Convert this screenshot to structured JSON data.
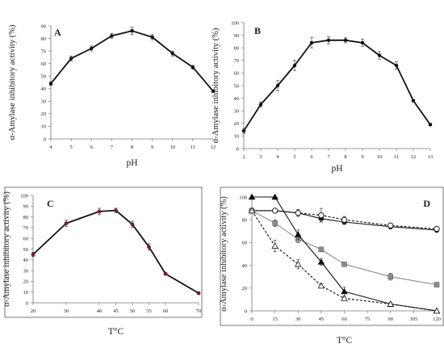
{
  "chart_data": [
    {
      "id": "A",
      "type": "line",
      "panel_label": "A",
      "xlabel": "pH",
      "ylabel": "α-Amylase inhibitory activity (%)",
      "xlim": [
        4,
        12
      ],
      "ylim": [
        0,
        90
      ],
      "xticks": [
        4,
        5,
        6,
        7,
        8,
        9,
        10,
        11,
        12
      ],
      "yticks": [
        0,
        10,
        20,
        30,
        40,
        50,
        60,
        70,
        80,
        90
      ],
      "frame": false,
      "series": [
        {
          "marker": "circle-filled",
          "style": "solid",
          "x": [
            4,
            5,
            6,
            7,
            8,
            9,
            10,
            11,
            12
          ],
          "y": [
            44,
            64,
            72,
            82,
            86,
            81,
            68,
            57,
            38
          ],
          "err": [
            1.5,
            2,
            2,
            2,
            3,
            2,
            2,
            1.5,
            1
          ]
        }
      ]
    },
    {
      "id": "B",
      "type": "line",
      "panel_label": "B",
      "xlabel": "pH",
      "ylabel": "α-Amylase inhibitory activity (%)",
      "xlim": [
        2,
        13
      ],
      "ylim": [
        0,
        100
      ],
      "xticks": [
        2,
        3,
        4,
        5,
        6,
        7,
        8,
        9,
        10,
        11,
        12,
        13
      ],
      "yticks": [
        0,
        10,
        20,
        30,
        40,
        50,
        60,
        70,
        80,
        90,
        100
      ],
      "frame": false,
      "series": [
        {
          "marker": "circle-filled",
          "style": "solid",
          "x": [
            2,
            3,
            4,
            5,
            6,
            7,
            8,
            9,
            10,
            11,
            12,
            13
          ],
          "y": [
            14,
            35,
            50,
            66,
            84,
            86,
            86,
            84,
            74,
            66,
            38,
            19
          ],
          "err": [
            2,
            2,
            4,
            4,
            4,
            3,
            2,
            3,
            3,
            3,
            1,
            1
          ]
        }
      ]
    },
    {
      "id": "C",
      "type": "line",
      "panel_label": "C",
      "xlabel": "T°C",
      "ylabel": "α-Amylase inhibitory activity (%)",
      "xlim": [
        20,
        70
      ],
      "ylim": [
        0,
        100
      ],
      "xticks": [
        20,
        30,
        40,
        45,
        50,
        55,
        60,
        70
      ],
      "yticks": [
        0,
        10,
        20,
        30,
        40,
        50,
        60,
        70,
        80,
        90,
        100
      ],
      "frame": true,
      "series": [
        {
          "marker": "circle-filled-red",
          "style": "solid",
          "x": [
            20,
            30,
            40,
            45,
            50,
            55,
            60,
            70
          ],
          "y": [
            45,
            74,
            85,
            86,
            73,
            52,
            27,
            9
          ],
          "err": [
            2,
            3,
            3,
            2,
            3,
            3,
            1,
            1
          ]
        }
      ]
    },
    {
      "id": "D",
      "type": "line",
      "panel_label": "D",
      "xlabel": "T°C",
      "ylabel": "α-Amylase inhibitory activity (%)",
      "xlim": [
        0,
        120
      ],
      "ylim": [
        0,
        100
      ],
      "xticks": [
        0,
        15,
        30,
        45,
        60,
        75,
        90,
        105,
        120
      ],
      "yticks": [
        0,
        20,
        40,
        60,
        80,
        100
      ],
      "frame": true,
      "series": [
        {
          "marker": "circle-filled",
          "style": "solid",
          "x": [
            0,
            15,
            30,
            45,
            60,
            90,
            120
          ],
          "y": [
            88,
            88,
            86,
            81,
            78,
            74,
            71
          ],
          "err": [
            1,
            2,
            3,
            3,
            2,
            2,
            2
          ]
        },
        {
          "marker": "circle-open",
          "style": "dashed",
          "x": [
            0,
            15,
            30,
            45,
            60,
            90,
            120
          ],
          "y": [
            88,
            88,
            86,
            84,
            80,
            75,
            72
          ],
          "err": [
            1,
            2,
            3,
            6,
            3,
            2,
            2
          ]
        },
        {
          "marker": "square-filled",
          "style": "solid",
          "x": [
            0,
            15,
            30,
            45,
            60,
            90,
            120
          ],
          "y": [
            88,
            77,
            63,
            54,
            41,
            30,
            23
          ],
          "err": [
            1,
            3,
            3,
            2,
            2,
            3,
            2
          ]
        },
        {
          "marker": "triangle-filled",
          "style": "solid",
          "x": [
            0,
            15,
            30,
            45,
            60,
            90,
            120
          ],
          "y": [
            100,
            100,
            67,
            43,
            17,
            6,
            0
          ],
          "err": [
            0,
            0,
            4,
            3,
            4,
            1,
            0
          ]
        },
        {
          "marker": "triangle-open",
          "style": "dashed",
          "x": [
            0,
            15,
            30,
            45,
            60,
            90,
            120
          ],
          "y": [
            88,
            57,
            41,
            22,
            11,
            6,
            0
          ],
          "err": [
            1,
            5,
            4,
            2,
            1,
            1,
            0
          ]
        }
      ]
    }
  ]
}
